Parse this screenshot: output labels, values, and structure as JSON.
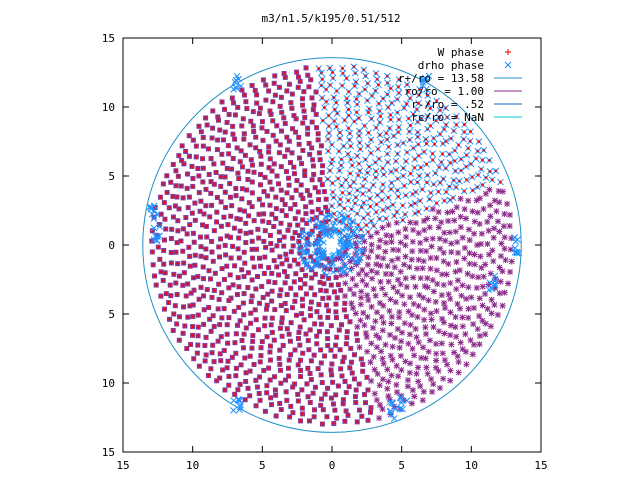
{
  "chart_data": {
    "type": "scatter",
    "title": "m3/n1.5/k195/0.51/512",
    "xlabel": "",
    "ylabel": "",
    "xlim": [
      -15,
      15
    ],
    "ylim": [
      -15,
      15
    ],
    "x_ticks": [
      -15,
      -10,
      -5,
      0,
      5,
      10,
      15
    ],
    "y_ticks": [
      -15,
      -10,
      -5,
      0,
      5,
      10,
      15
    ],
    "x_tick_labels": [
      "15",
      "10",
      "5",
      "0",
      "5",
      "10",
      "15"
    ],
    "y_tick_labels": [
      "15",
      "10",
      "5",
      "0",
      "5",
      "10",
      "15"
    ],
    "grid": false,
    "legend_position": "top-right",
    "legend": [
      {
        "label": "W phase",
        "marker": "plus",
        "color": "#ff0000"
      },
      {
        "label": "drho phase",
        "marker": "cross",
        "color": "#1e90ff"
      },
      {
        "label": "r+/ro = 13.58",
        "line": true,
        "color": "#1e90c8"
      },
      {
        "label": "ro/ro = 1.00",
        "line": true,
        "color": "#8b2a8b"
      },
      {
        "label": "r-/ro = .52",
        "line": true,
        "color": "#1565c0"
      },
      {
        "label": "rc/ro = NaN",
        "line": true,
        "color": "#00ced1"
      }
    ],
    "circles": [
      {
        "name": "r+/ro = 13.58",
        "radius": 13.58,
        "color": "#1e90c8"
      }
    ],
    "series": [
      {
        "name": "W phase",
        "marker": "plus",
        "color": "#ff0000",
        "description_pattern": "spiral",
        "spiral_arms": 3,
        "radial_range": [
          0.52,
          13.58
        ]
      },
      {
        "name": "drho phase",
        "marker": "cross",
        "color": "#1e90ff",
        "description_pattern": "spiral",
        "spiral_arms": 3,
        "radial_range": [
          0.52,
          13.58
        ]
      }
    ]
  }
}
